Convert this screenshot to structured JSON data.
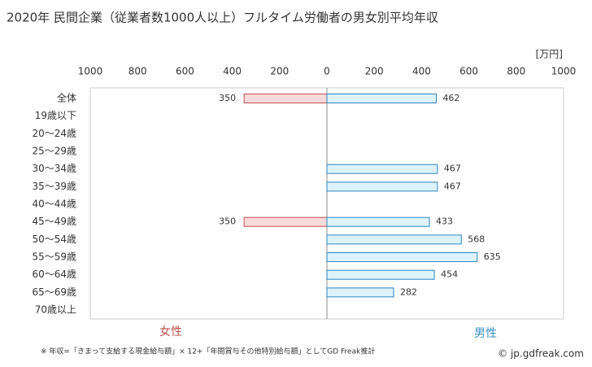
{
  "chart_data": {
    "type": "butterfly",
    "title": "2020年 民間企業（従業者数1000人以上）フルタイム労働者の男女別平均年収",
    "unit_label": "[万円]",
    "categories": [
      "全体",
      "19歳以下",
      "20～24歳",
      "25～29歳",
      "30～34歳",
      "35～39歳",
      "40～44歳",
      "45～49歳",
      "50～54歳",
      "55～59歳",
      "60～64歳",
      "65～69歳",
      "70歳以上"
    ],
    "series": [
      {
        "name": "女性",
        "color": "#f9dada",
        "edge": "#c0504d",
        "label_color": "#c0504d",
        "side": "left",
        "values": [
          350,
          null,
          null,
          null,
          null,
          null,
          null,
          350,
          null,
          null,
          null,
          null,
          null
        ]
      },
      {
        "name": "男性",
        "color": "#dcf3fb",
        "edge": "#2e86c1",
        "label_color": "#3a8fc8",
        "side": "right",
        "values": [
          462,
          null,
          null,
          null,
          467,
          467,
          null,
          433,
          568,
          635,
          454,
          282,
          null
        ]
      }
    ],
    "left_xlim": [
      1000,
      0
    ],
    "left_xticks": [
      1000,
      800,
      600,
      400,
      200
    ],
    "right_xlim": [
      0,
      1000
    ],
    "right_xticks": [
      0,
      200,
      400,
      600,
      800,
      1000
    ],
    "footnote": "※ 年収=「きまって支給する現金給与額」× 12+「年間賞与その他特別給与額」としてGD Freak推計",
    "source": "© jp.gdfreak.com"
  }
}
